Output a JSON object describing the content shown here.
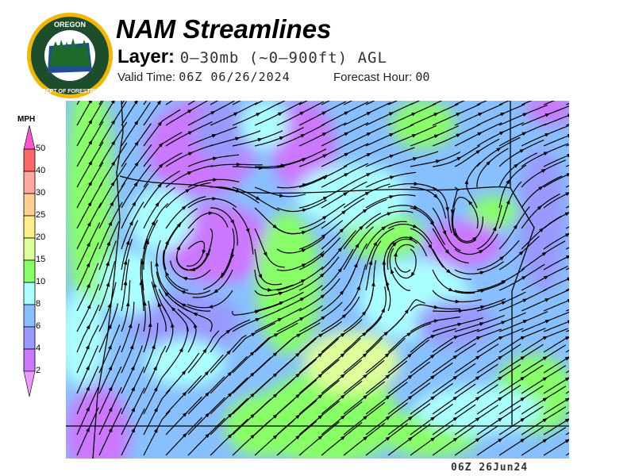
{
  "header": {
    "logo_text": "OREGON DEPARTMENT OF FORESTRY",
    "title": "NAM Streamlines",
    "layer_label": "Layer:",
    "layer_value": "0–30mb (~0–900ft) AGL",
    "valid_label": "Valid Time:",
    "valid_value": "06Z 06/26/2024",
    "forecast_label": "Forecast Hour:",
    "forecast_value": "00"
  },
  "legend": {
    "unit": "MPH",
    "ticks": [
      "50",
      "40",
      "30",
      "25",
      "20",
      "15",
      "10",
      "8",
      "6",
      "4",
      "2"
    ],
    "colors": {
      "above_50": "#ff55cc",
      "40-50": "#ff6666",
      "30-40": "#ffaaa0",
      "25-30": "#ffd090",
      "20-25": "#ffee88",
      "15-20": "#ddff99",
      "10-15": "#88ff66",
      "8-10": "#aaffff",
      "6-8": "#88c0ff",
      "4-6": "#9999ff",
      "2-4": "#cc77ff",
      "below_2": "#ee99ff"
    }
  },
  "map": {
    "type": "streamline wind speed map",
    "region": "Oregon",
    "footer": "06Z 26Jun24"
  }
}
